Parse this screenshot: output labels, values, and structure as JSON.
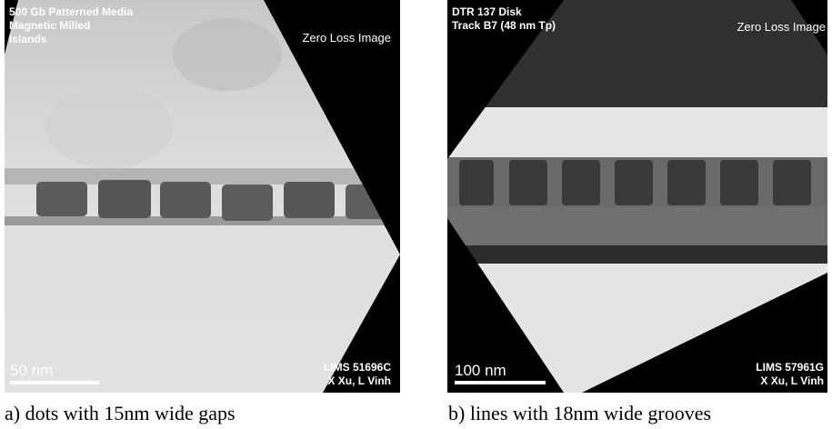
{
  "panels": [
    {
      "title_lines": [
        "500 Gb Patterned Media",
        "Magnetic Milled",
        "Islands"
      ],
      "corner_label": "Zero Loss Image",
      "scale_bar": "50 nm",
      "image_id": "LIMS 51696C",
      "authors": "X Xu, L Vinh",
      "caption": "a) dots with 15nm wide gaps"
    },
    {
      "title_lines": [
        "DTR 137 Disk",
        "Track B7 (48 nm Tp)"
      ],
      "corner_label": "Zero Loss Image",
      "scale_bar": "100 nm",
      "image_id": "LIMS 57961G",
      "authors": "X Xu, L Vinh",
      "caption": "b) lines with 18nm wide grooves"
    }
  ]
}
